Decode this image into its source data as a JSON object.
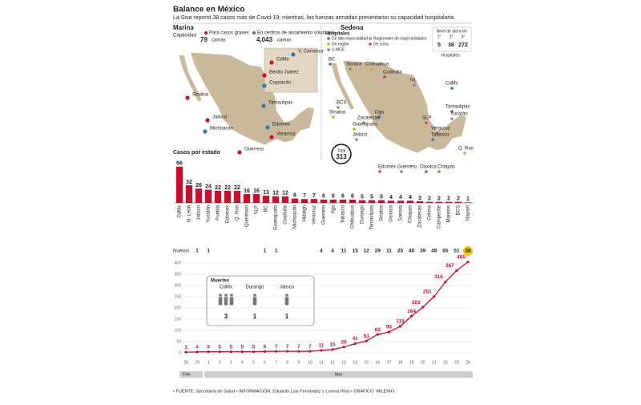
{
  "header": {
    "title": "Balance en México",
    "subtitle": "La Sisa reportó 38 casos más de Covid-19; mientras, las fuerzas armadas presentaron su capacidad hospitalaria."
  },
  "marina": {
    "title": "Marina",
    "capacity_label": "Capacidad",
    "capacity": [
      {
        "legend": "Para casos graves",
        "beds": "79",
        "unit": "camas"
      },
      {
        "legend": "En centros de aislamiento voluntario",
        "beds": "4,043",
        "unit": "camas"
      }
    ],
    "places": [
      "CdMx",
      "V. Carranza",
      "Benito Juárez",
      "Coyoacán",
      "Sinaloa",
      "Tamaulipas",
      "Jalisco",
      "Edomex",
      "Veracruz",
      "Michoacán",
      "Guerrero"
    ]
  },
  "sedena": {
    "title": "Sedena",
    "legend_title": "Hospitales",
    "legend": [
      "De alta especialidad",
      "Regionales de especialidades",
      "De región",
      "De zona",
      "U.MCE"
    ],
    "levels_title": "Nivel de atención",
    "levels": [
      "1°",
      "2°",
      "3°"
    ],
    "level_counts": [
      "5",
      "36",
      "272"
    ],
    "levels_unit": "Hospitales",
    "total_label": "Total",
    "total": "313",
    "places": [
      "BC",
      "Sonora",
      "Chihuahua",
      "Coahuila",
      "NL",
      "CdMx",
      "BCS",
      "Sinaloa",
      "Tamaulipas",
      "Yucatán",
      "Dgo",
      "Zacatecas",
      "Guanajuato",
      "SLP",
      "Veracruz",
      "Tabasco",
      "Jalisco",
      "Q. Roo",
      "Edomex",
      "Guerrero",
      "Oaxaca",
      "Chiapas"
    ]
  },
  "chart_data": [
    {
      "type": "bar",
      "title": "Casos por estado",
      "color": "#c8102e",
      "ylim": [
        0,
        70
      ],
      "categories": [
        "CdMx",
        "N. León",
        "Jalisco",
        "Yucatán",
        "Puebla",
        "Edomex",
        "Q. Roo",
        "Querétaro",
        "SLP",
        "BC",
        "Guanajuato",
        "Coahuila",
        "Michoacán",
        "Hidalgo",
        "Veracruz",
        "Guerrero",
        "Ags",
        "Tabasco",
        "Chihuahua",
        "Durango",
        "Tamaulipas",
        "Sinaloa",
        "Oaxaca",
        "Sonora",
        "Chiapas",
        "Zacatecas",
        "Colima",
        "Campeche",
        "Morelos",
        "BCS",
        "Nayarit"
      ],
      "values": [
        66,
        32,
        26,
        24,
        22,
        22,
        22,
        16,
        16,
        13,
        12,
        12,
        8,
        7,
        7,
        6,
        6,
        6,
        6,
        5,
        5,
        5,
        4,
        4,
        4,
        3,
        2,
        2,
        2,
        2,
        1
      ]
    },
    {
      "type": "line",
      "color": "#c8102e",
      "ylim": [
        0,
        400
      ],
      "yticks": [
        0,
        50,
        100,
        150,
        200,
        250,
        300,
        350,
        400
      ],
      "grid": true,
      "categories": [
        "28",
        "29",
        "1",
        "2",
        "3",
        "4",
        "5",
        "6",
        "7",
        "8",
        "9",
        "10",
        "11",
        "12",
        "13",
        "14",
        "15",
        "16",
        "17",
        "18",
        "19",
        "20",
        "21",
        "22",
        "23",
        "24"
      ],
      "months": [
        "Feb",
        "Mar"
      ],
      "values": [
        3,
        4,
        5,
        5,
        5,
        5,
        5,
        6,
        7,
        7,
        7,
        7,
        11,
        15,
        26,
        41,
        53,
        82,
        93,
        118,
        164,
        203,
        251,
        316,
        367,
        405
      ],
      "new_label": "Nuevos",
      "new_values": [
        null,
        1,
        1,
        null,
        null,
        null,
        null,
        1,
        1,
        null,
        null,
        null,
        4,
        4,
        11,
        15,
        12,
        29,
        11,
        25,
        46,
        39,
        48,
        65,
        51,
        38
      ],
      "deaths": {
        "title": "Muertes",
        "states": [
          "CdMx",
          "Durango",
          "Jalisco"
        ],
        "values": [
          3,
          1,
          1
        ]
      }
    }
  ],
  "footer": "• FUENTE: Secretaría de Salud • INFORMACIÓN: Eduardo Luis Fernández y Lorena Ríos • GRÁFICO: MILENIO"
}
